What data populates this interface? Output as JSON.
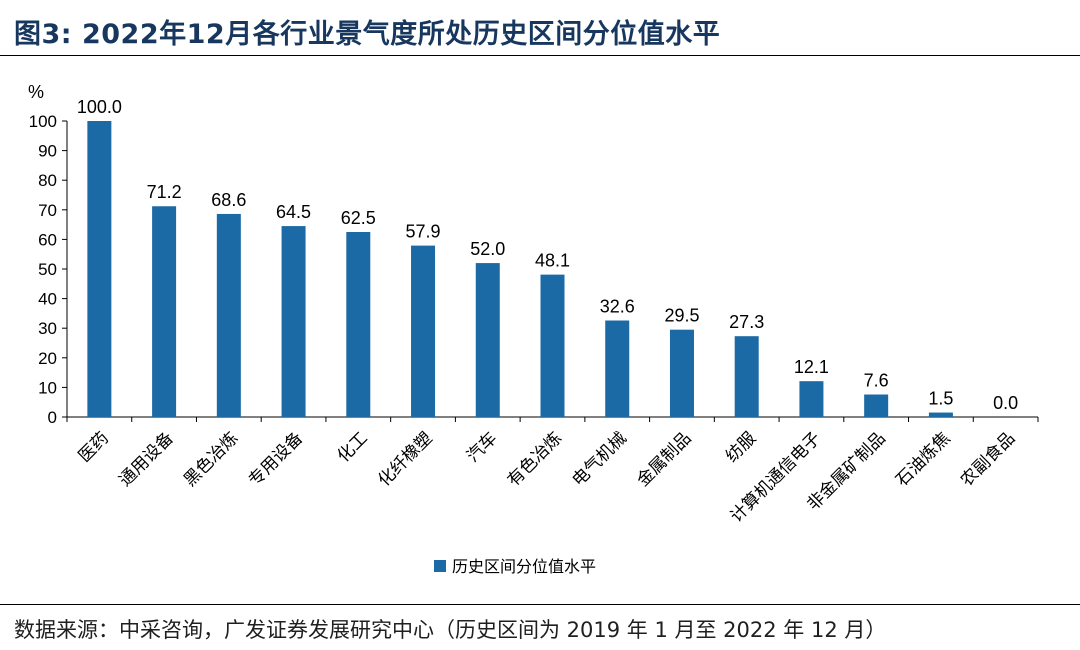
{
  "title": "图3:  2022年12月各行业景气度所处历史区间分位值水平",
  "source": "数据来源：中采咨询，广发证券发展研究中心（历史区间为 2019 年 1 月至 2022 年 12 月）",
  "colors": {
    "bar": "#1b6aa5",
    "title": "#17375e"
  },
  "chart_data": {
    "type": "bar",
    "ylabel": "%",
    "ylim": [
      0,
      100
    ],
    "yticks": [
      0,
      10,
      20,
      30,
      40,
      50,
      60,
      70,
      80,
      90,
      100
    ],
    "categories": [
      "医药",
      "通用设备",
      "黑色冶炼",
      "专用设备",
      "化工",
      "化纤橡塑",
      "汽车",
      "有色冶炼",
      "电气机械",
      "金属制品",
      "纺服",
      "计算机通信电子",
      "非金属矿制品",
      "石油炼焦",
      "农副食品"
    ],
    "series": [
      {
        "name": "历史区间分位值水平",
        "values": [
          100.0,
          71.2,
          68.6,
          64.5,
          62.5,
          57.9,
          52.0,
          48.1,
          32.6,
          29.5,
          27.3,
          12.1,
          7.6,
          1.5,
          0.0
        ],
        "labels": [
          "100.0",
          "71.2",
          "68.6",
          "64.5",
          "62.5",
          "57.9",
          "52.0",
          "48.1",
          "32.6",
          "29.5",
          "27.3",
          "12.1",
          "7.6",
          "1.5",
          "0.0"
        ]
      }
    ],
    "legend_position": "bottom-center",
    "grid": false
  }
}
